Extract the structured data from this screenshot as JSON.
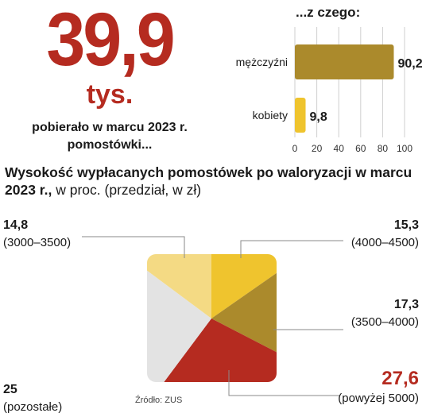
{
  "headline": {
    "value": "39,9",
    "unit": "tys.",
    "line1": "pobierało w marcu 2023 r.",
    "line2": "pomostówki..."
  },
  "subchart_heading": "...z czego:",
  "heading": {
    "bold_part": "Wysokość wypłacanych pomostówek po waloryzacji w marcu 2023 r.,",
    "normal_part": " w proc. (przedział, w zł)"
  },
  "source": "Źródło: ZUS",
  "colors": {
    "accent_red": "#b52b20",
    "bar_gold": "#ab8a2c",
    "bar_yellow": "#efc42e",
    "grid": "#cfcfcf"
  },
  "chart_data": [
    {
      "type": "bar",
      "orientation": "horizontal",
      "title": "...z czego:",
      "categories": [
        "mężczyźni",
        "kobiety"
      ],
      "values": [
        90.2,
        9.8
      ],
      "value_labels": [
        "90,2",
        "9,8"
      ],
      "colors": [
        "#ab8a2c",
        "#efc42e"
      ],
      "xlim": [
        0,
        100
      ],
      "xticks": [
        0,
        20,
        40,
        60,
        80,
        100
      ],
      "grid": true
    },
    {
      "type": "pie",
      "shape": "square",
      "title": "Wysokość wypłacanych pomostówek po waloryzacji w marcu 2023 r., w proc. (przedział, w zł)",
      "slices": [
        {
          "label": "(4000–4500)",
          "value": 15.3,
          "value_label": "15,3",
          "color": "#efc42e",
          "highlight": false
        },
        {
          "label": "(3500–4000)",
          "value": 17.3,
          "value_label": "17,3",
          "color": "#ab8a2c",
          "highlight": false
        },
        {
          "label": "(powyżej 5000)",
          "value": 27.6,
          "value_label": "27,6",
          "color": "#b52b20",
          "highlight": true
        },
        {
          "label": "(pozostałe)",
          "value": 25,
          "value_label": "25",
          "color": "#e3e3e3",
          "highlight": false
        },
        {
          "label": "(3000–3500)",
          "value": 14.8,
          "value_label": "14,8",
          "color": "#f4da84",
          "highlight": false
        }
      ]
    }
  ]
}
